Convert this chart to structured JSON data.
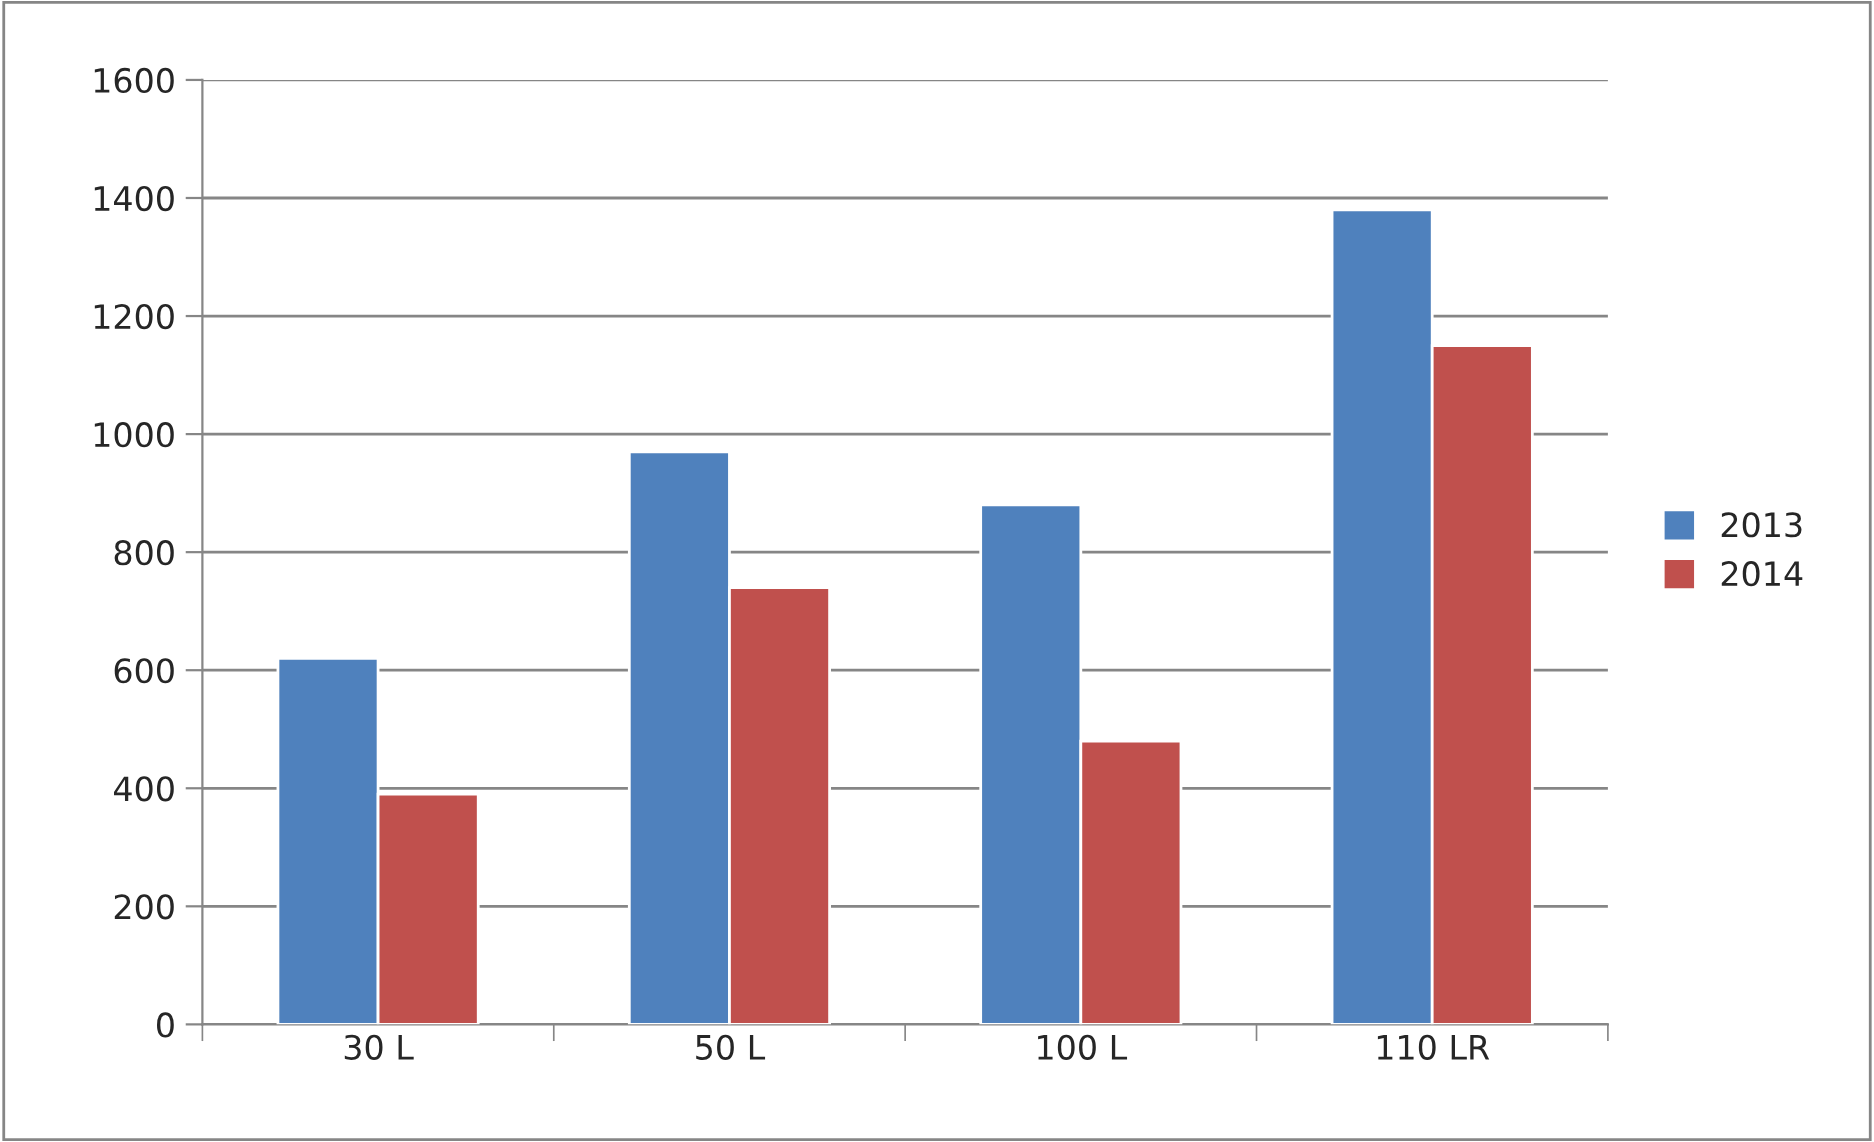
{
  "chart_data": {
    "type": "bar",
    "categories": [
      "30 L",
      "50 L",
      "100 L",
      "110 LR"
    ],
    "series": [
      {
        "name": "2013",
        "color": "#4f81bd",
        "values": [
          620,
          970,
          880,
          1380
        ]
      },
      {
        "name": "2014",
        "color": "#c0504d",
        "values": [
          390,
          740,
          480,
          1150
        ]
      }
    ],
    "ylim": [
      0,
      1600
    ],
    "yticks": [
      0,
      200,
      400,
      600,
      800,
      1000,
      1200,
      1400,
      1600
    ],
    "grid": "y",
    "legend": "right"
  }
}
